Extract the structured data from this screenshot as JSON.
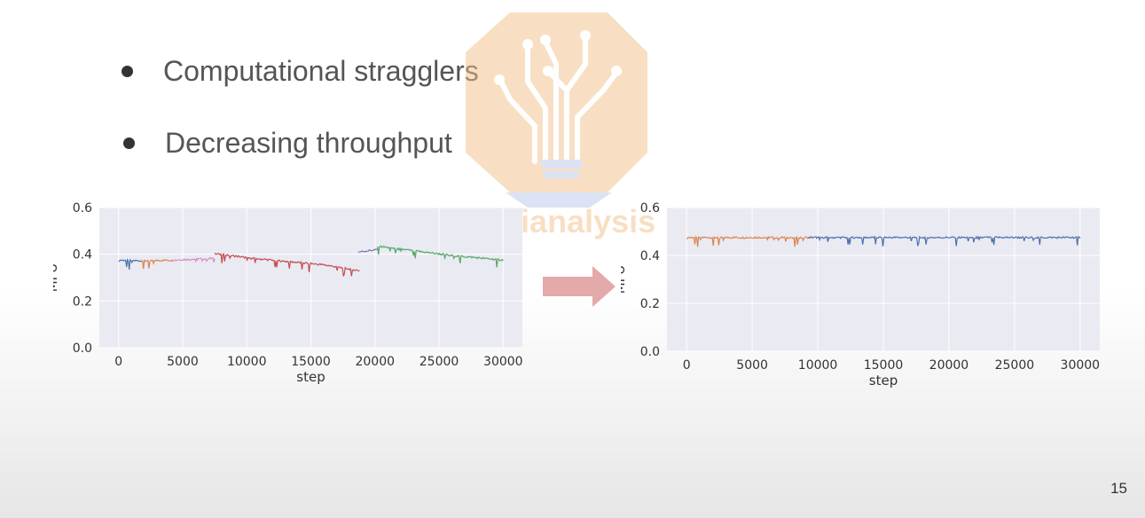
{
  "bullets": [
    "Computational stragglers",
    "Decreasing throughput"
  ],
  "watermark": "semianalysis",
  "page_number": "15",
  "colors": {
    "plot_bg": "#eaeaf2",
    "grid": "#ffffff",
    "blue": "#4c72b0",
    "orange": "#dd8452",
    "green": "#55a868",
    "red": "#c44e52",
    "purple": "#8172b3",
    "pink": "#da8bc3",
    "arrow": "#e4a9a9"
  },
  "chart_data": [
    {
      "type": "line",
      "xlabel": "step",
      "ylabel": "MFU",
      "xlim": [
        -1500,
        31500
      ],
      "ylim": [
        0.0,
        0.6
      ],
      "xticks": [
        0,
        5000,
        10000,
        15000,
        20000,
        25000,
        30000
      ],
      "yticks": [
        0.0,
        0.2,
        0.4,
        0.6
      ],
      "grid": true,
      "series": [
        {
          "color": "blue",
          "points": [
            [
              0,
              0.375
            ],
            [
              1800,
              0.372
            ]
          ]
        },
        {
          "color": "orange",
          "points": [
            [
              1800,
              0.372
            ],
            [
              4200,
              0.375
            ]
          ]
        },
        {
          "color": "pink",
          "points": [
            [
              4200,
              0.375
            ],
            [
              7500,
              0.383
            ]
          ]
        },
        {
          "color": "red",
          "points": [
            [
              7500,
              0.405
            ],
            [
              10000,
              0.385
            ],
            [
              13000,
              0.37
            ],
            [
              16000,
              0.355
            ],
            [
              18800,
              0.33
            ]
          ]
        },
        {
          "color": "purple",
          "points": [
            [
              18700,
              0.41
            ],
            [
              20200,
              0.42
            ]
          ]
        },
        {
          "color": "green",
          "points": [
            [
              20200,
              0.435
            ],
            [
              23000,
              0.415
            ],
            [
              26000,
              0.395
            ],
            [
              28000,
              0.385
            ],
            [
              30000,
              0.375
            ]
          ]
        }
      ]
    },
    {
      "type": "line",
      "xlabel": "step",
      "ylabel": "MFU",
      "xlim": [
        -1500,
        31500
      ],
      "ylim": [
        0.0,
        0.6
      ],
      "xticks": [
        0,
        5000,
        10000,
        15000,
        20000,
        25000,
        30000
      ],
      "yticks": [
        0.0,
        0.2,
        0.4,
        0.6
      ],
      "grid": true,
      "series": [
        {
          "color": "orange",
          "points": [
            [
              0,
              0.475
            ],
            [
              9300,
              0.475
            ]
          ]
        },
        {
          "color": "blue",
          "points": [
            [
              9300,
              0.475
            ],
            [
              30000,
              0.475
            ]
          ]
        }
      ]
    }
  ]
}
